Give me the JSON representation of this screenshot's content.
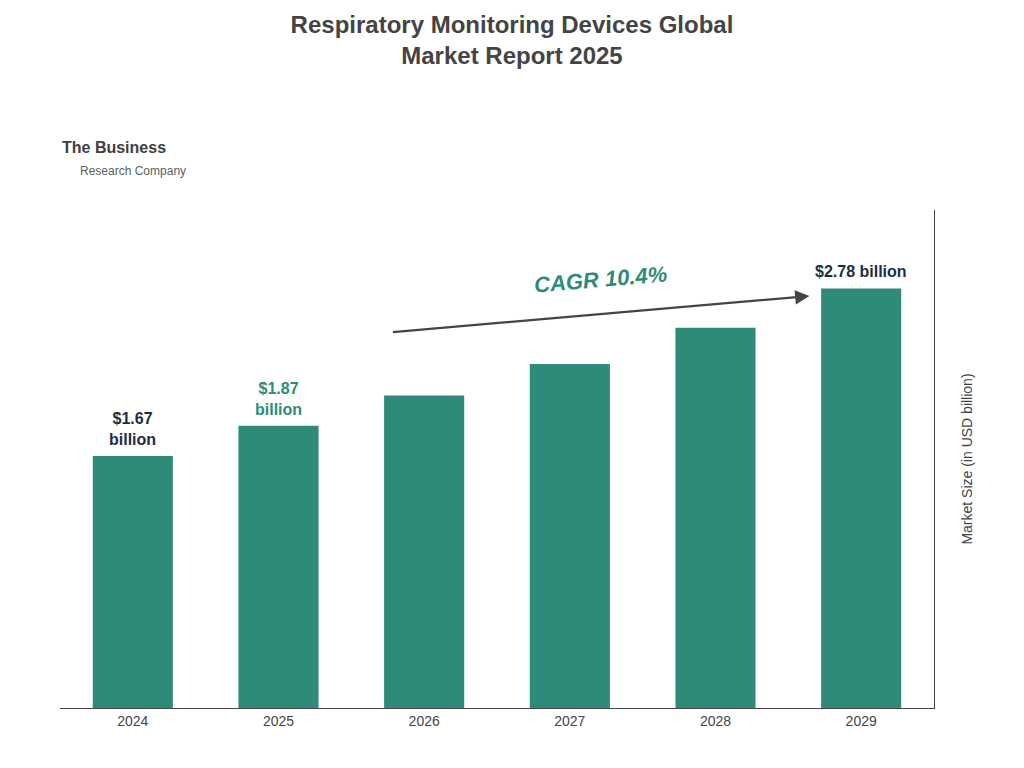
{
  "chart_data": {
    "type": "bar",
    "title": "Respiratory Monitoring Devices Global\nMarket Report 2025",
    "categories": [
      "2024",
      "2025",
      "2026",
      "2027",
      "2028",
      "2029"
    ],
    "values": [
      1.67,
      1.87,
      2.07,
      2.28,
      2.52,
      2.78
    ],
    "color": "#2e8b7a",
    "ylabel": "Market Size (in USD billion)",
    "ylim": [
      0,
      3.3
    ],
    "yticks": [],
    "tick_labels": "x",
    "grid": false,
    "annotations": [
      {
        "text": "$1.67\nbillion",
        "category": "2024",
        "color": "#1a2e44"
      },
      {
        "text": "$1.87\nbillion",
        "category": "2025",
        "color": "#2e8b7a"
      },
      {
        "text": "$2.78 billion",
        "category": "2029",
        "color": "#1a2e44"
      },
      {
        "text": "CAGR 10.4%",
        "color": "#2e8b7a",
        "from": "2026",
        "to": "2029"
      },
      {
        "text": "The Business",
        "color": "#404040"
      },
      {
        "text": "Research Company",
        "color": "#606060"
      }
    ]
  }
}
